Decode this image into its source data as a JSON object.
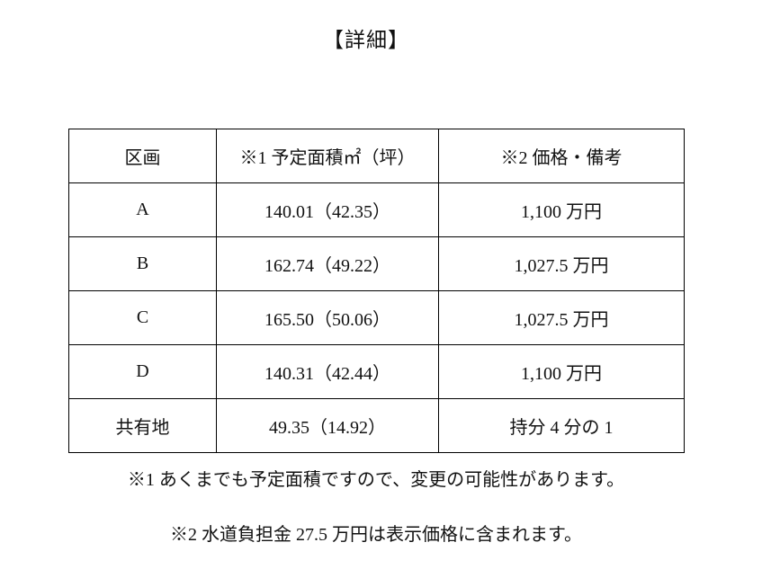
{
  "page": {
    "title": "【詳細】"
  },
  "table": {
    "headers": {
      "section": "区画",
      "area": "※1 予定面積㎡（坪）",
      "price": "※2 価格・備考"
    },
    "rows": [
      {
        "section": "A",
        "area": "140.01（42.35）",
        "price": "1,100 万円"
      },
      {
        "section": "B",
        "area": "162.74（49.22）",
        "price": "1,027.5 万円"
      },
      {
        "section": "C",
        "area": "165.50（50.06）",
        "price": "1,027.5 万円"
      },
      {
        "section": "D",
        "area": "140.31（42.44）",
        "price": "1,100 万円"
      },
      {
        "section": "共有地",
        "area": "49.35（14.92）",
        "price": "持分 4 分の 1"
      }
    ]
  },
  "notes": [
    "※1 あくまでも予定面積ですので、変更の可能性があります。",
    "※2 水道負担金 27.5 万円は表示価格に含まれます。"
  ]
}
